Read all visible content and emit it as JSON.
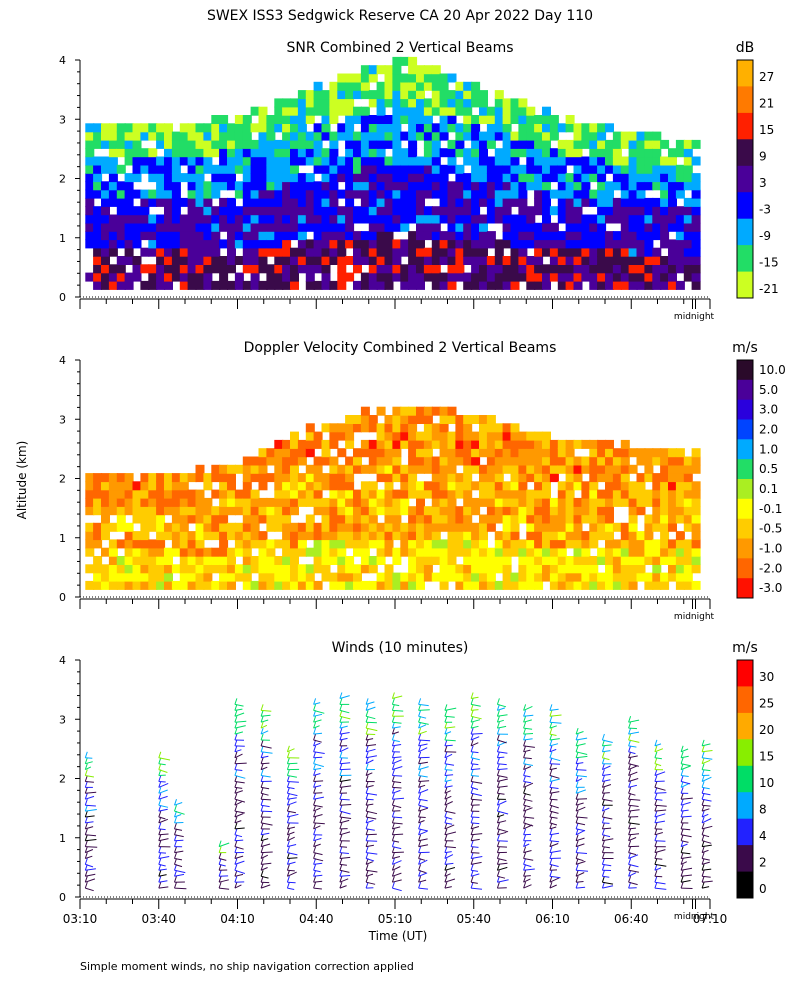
{
  "page": {
    "title": "SWEX ISS3 Sedgwick Reserve CA  20 Apr 2022 Day 110",
    "ylabel": "Altitude (km)",
    "xlabel": "Time (UT)",
    "footnote": "Simple moment winds, no ship navigation correction applied",
    "midnight_label": "midnight"
  },
  "chart_data": [
    {
      "type": "heatmap",
      "title": "SNR Combined 2 Vertical Beams",
      "unit": "dB",
      "ylim": [
        0,
        4
      ],
      "yticks": [
        "0",
        "1",
        "2",
        "3",
        "4"
      ],
      "xlim": [
        "03:10",
        "07:10"
      ],
      "colorbar": {
        "labels": [
          "27",
          "21",
          "15",
          "9",
          "3",
          "-3",
          "-9",
          "-15",
          "-21"
        ],
        "colors": [
          "#ffb000",
          "#ff7a00",
          "#ff2000",
          "#3a0a4a",
          "#4a0099",
          "#0000ff",
          "#00aaff",
          "#22dd66",
          "#ccff22"
        ]
      },
      "echo_top_km": [
        {
          "t": "03:10",
          "top": 2.8
        },
        {
          "t": "03:40",
          "top": 2.8
        },
        {
          "t": "04:10",
          "top": 3.0
        },
        {
          "t": "04:40",
          "top": 3.5
        },
        {
          "t": "05:10",
          "top": 4.0
        },
        {
          "t": "05:40",
          "top": 3.5
        },
        {
          "t": "06:10",
          "top": 3.0
        },
        {
          "t": "06:40",
          "top": 2.7
        },
        {
          "t": "07:10",
          "top": 2.5
        }
      ]
    },
    {
      "type": "heatmap",
      "title": "Doppler Velocity Combined 2 Vertical Beams",
      "unit": "m/s",
      "ylim": [
        0,
        4
      ],
      "yticks": [
        "0",
        "1",
        "2",
        "3",
        "4"
      ],
      "xlim": [
        "03:10",
        "07:10"
      ],
      "colorbar": {
        "labels": [
          "10.0",
          "5.0",
          "3.0",
          "2.0",
          "1.0",
          "0.5",
          "0.1",
          "-0.1",
          "-0.5",
          "-1.0",
          "-2.0",
          "-3.0"
        ],
        "colors": [
          "#2a0a2a",
          "#4a0099",
          "#2a00dd",
          "#0044ff",
          "#00aaff",
          "#22dd66",
          "#aaee22",
          "#ffff00",
          "#ffcc00",
          "#ff9900",
          "#ff6600",
          "#ff1100"
        ]
      },
      "echo_top_km": [
        {
          "t": "03:10",
          "top": 2.0
        },
        {
          "t": "03:40",
          "top": 2.0
        },
        {
          "t": "04:10",
          "top": 2.2
        },
        {
          "t": "04:40",
          "top": 2.9
        },
        {
          "t": "05:10",
          "top": 3.2
        },
        {
          "t": "05:40",
          "top": 3.0
        },
        {
          "t": "06:10",
          "top": 2.6
        },
        {
          "t": "06:40",
          "top": 2.5
        },
        {
          "t": "07:10",
          "top": 2.4
        }
      ]
    },
    {
      "type": "scatter",
      "title": "Winds (10 minutes)",
      "unit": "m/s",
      "ylim": [
        0,
        4
      ],
      "yticks": [
        "0",
        "1",
        "2",
        "3",
        "4"
      ],
      "xticklabels": [
        "03:10",
        "03:40",
        "04:10",
        "04:40",
        "05:10",
        "05:40",
        "06:10",
        "06:40",
        "07:10"
      ],
      "colorbar": {
        "labels": [
          "30",
          "25",
          "20",
          "15",
          "10",
          "8",
          "4",
          "2",
          "0"
        ],
        "colors": [
          "#ff0000",
          "#ff6600",
          "#ffaa00",
          "#88ee00",
          "#00dd66",
          "#00aaff",
          "#2222ff",
          "#3a0a4a",
          "#000000"
        ]
      },
      "profiles": [
        {
          "t": "03:12",
          "top": 2.4
        },
        {
          "t": "03:40",
          "top": 2.4
        },
        {
          "t": "03:46",
          "top": 1.6
        },
        {
          "t": "04:03",
          "top": 0.9
        },
        {
          "t": "04:09",
          "top": 3.3
        },
        {
          "t": "04:19",
          "top": 3.2
        },
        {
          "t": "04:29",
          "top": 2.5
        },
        {
          "t": "04:39",
          "top": 3.3
        },
        {
          "t": "04:49",
          "top": 3.4
        },
        {
          "t": "04:59",
          "top": 3.3
        },
        {
          "t": "05:09",
          "top": 3.4
        },
        {
          "t": "05:19",
          "top": 3.3
        },
        {
          "t": "05:29",
          "top": 3.2
        },
        {
          "t": "05:39",
          "top": 3.4
        },
        {
          "t": "05:49",
          "top": 3.3
        },
        {
          "t": "05:59",
          "top": 3.2
        },
        {
          "t": "06:09",
          "top": 3.2
        },
        {
          "t": "06:19",
          "top": 2.8
        },
        {
          "t": "06:29",
          "top": 2.7
        },
        {
          "t": "06:39",
          "top": 3.0
        },
        {
          "t": "06:49",
          "top": 2.6
        },
        {
          "t": "06:59",
          "top": 2.5
        },
        {
          "t": "07:07",
          "top": 2.6
        }
      ]
    }
  ]
}
